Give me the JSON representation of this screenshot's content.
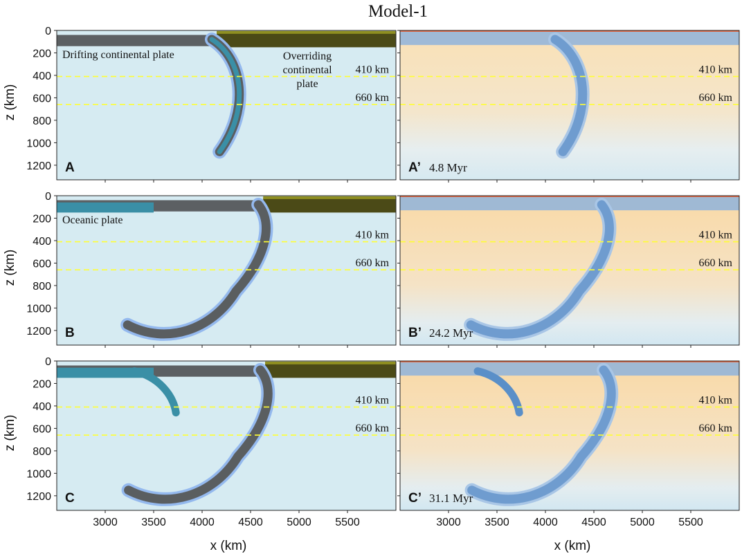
{
  "figure": {
    "title": "Model-1"
  },
  "chart_data": {
    "type": "scatter",
    "title": "Model-1",
    "xlabel": "x (km)",
    "ylabel": "z (km)",
    "xlim": [
      2500,
      6000
    ],
    "ylim": [
      0,
      1400
    ],
    "y_inverted": true,
    "xticks": [
      3000,
      3500,
      4000,
      4500,
      5000,
      5500
    ],
    "yticks": [
      0,
      200,
      400,
      600,
      800,
      1000,
      1200
    ],
    "reference_lines": [
      {
        "depth": 410,
        "label": "410 km",
        "color": "#ffff33",
        "style": "dashed"
      },
      {
        "depth": 660,
        "label": "660 km",
        "color": "#ffff33",
        "style": "dashed"
      }
    ],
    "colors": {
      "mantle": "#d6ebf2",
      "continental_crust": "#5a5e60",
      "overriding_plate": "#4b4a17",
      "slab": "#3a8fa6",
      "weak_zone": "#94b9ee",
      "temperature_warm": "#f7d49a",
      "temperature_cold": "#5a8fc8"
    },
    "panels": [
      {
        "id": "A",
        "label": "A",
        "column": "composition",
        "annotations": [
          "Drifting continental plate",
          "Overriding continental plate"
        ],
        "slab_trench_x": 4120,
        "slab_tip": [
          4180,
          1080
        ]
      },
      {
        "id": "A'",
        "label": "A’",
        "time": "4.8 Myr",
        "column": "temperature",
        "slab_trench_x": 4120,
        "slab_tip": [
          4180,
          1080
        ]
      },
      {
        "id": "B",
        "label": "B",
        "column": "composition",
        "annotations": [
          "Oceanic plate"
        ],
        "slab_trench_x": 4600,
        "slab_tip": [
          3230,
          1150
        ]
      },
      {
        "id": "B'",
        "label": "B’",
        "time": "24.2 Myr",
        "column": "temperature",
        "slab_trench_x": 4600,
        "slab_tip": [
          3230,
          1150
        ]
      },
      {
        "id": "C",
        "label": "C",
        "column": "composition",
        "slab_trench_x": 4620,
        "slab_tip": [
          3240,
          1150
        ],
        "second_slab_tip": [
          3730,
          460
        ]
      },
      {
        "id": "C'",
        "label": "C’",
        "time": "31.1 Myr",
        "column": "temperature",
        "slab_trench_x": 4620,
        "slab_tip": [
          3240,
          1150
        ],
        "second_slab_tip": [
          3730,
          460
        ]
      }
    ]
  }
}
